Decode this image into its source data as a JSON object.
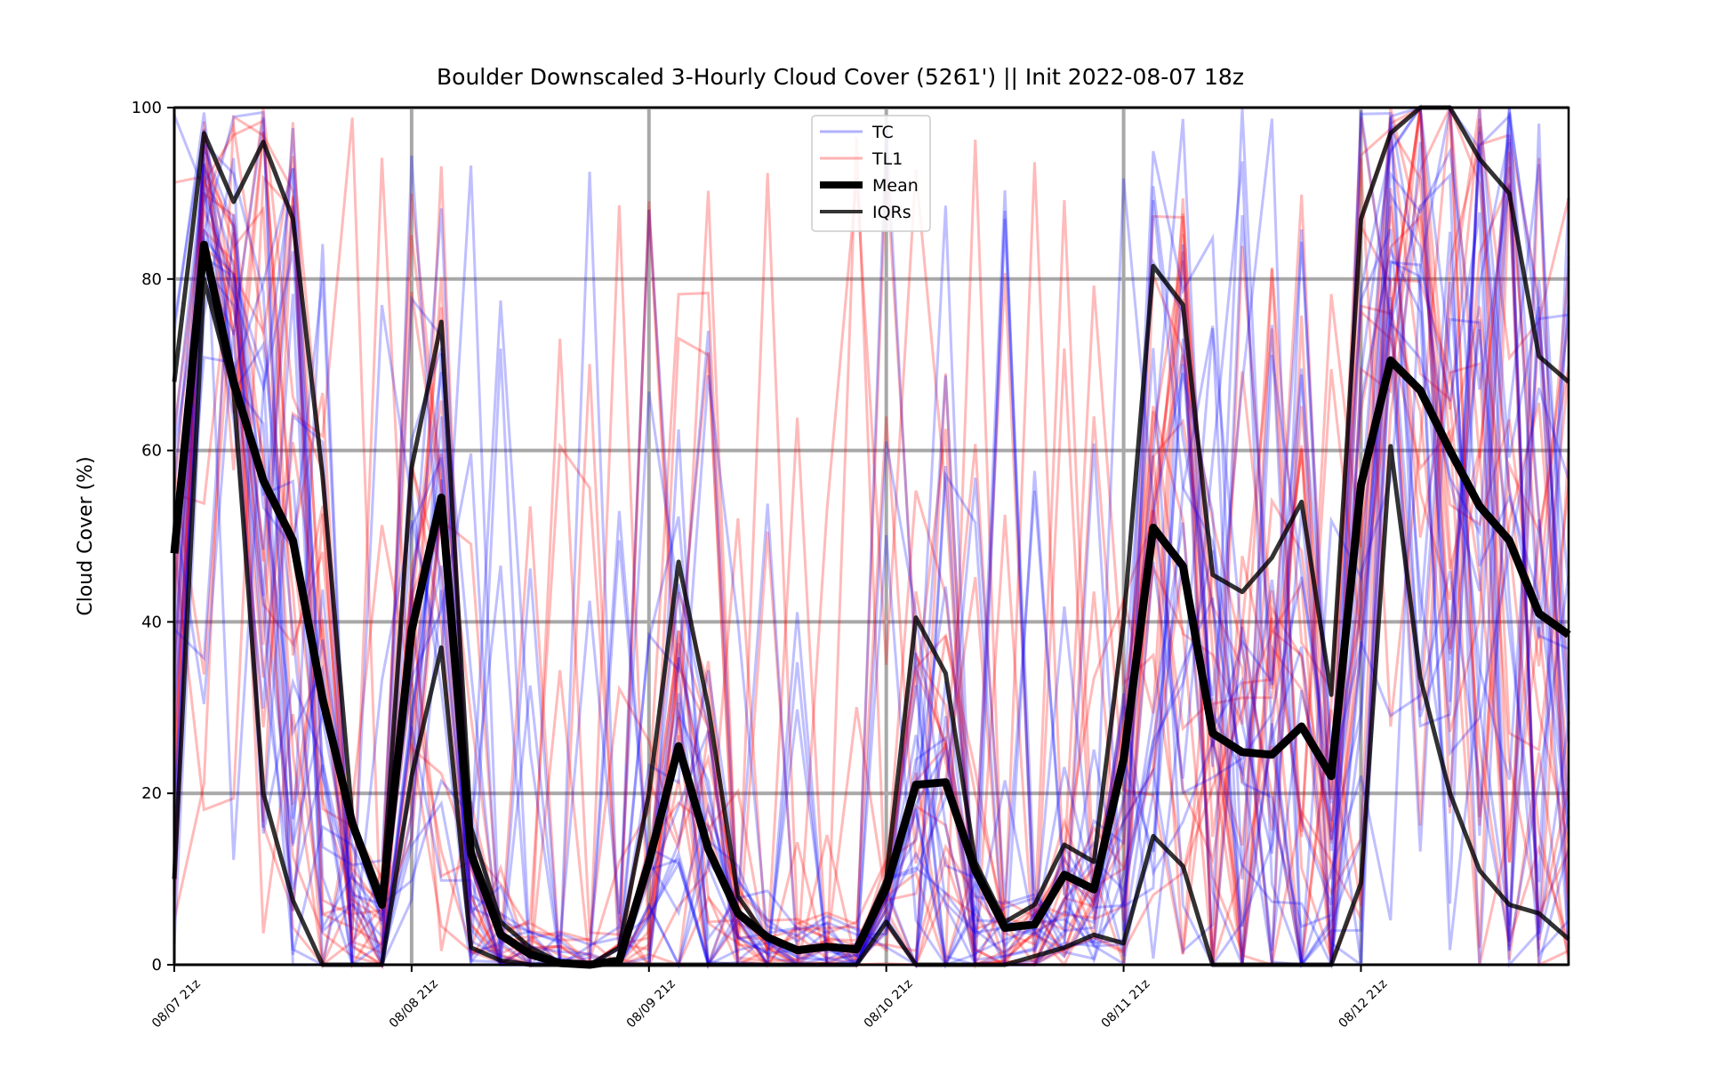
{
  "chart_data": {
    "type": "line",
    "title": "Boulder Downscaled 3-Hourly Cloud Cover (5261') || Init 2022-08-07 18z",
    "ylabel": "Cloud Cover (%)",
    "xlabel": "",
    "ylim": [
      0,
      100
    ],
    "yticks": [
      0,
      20,
      40,
      60,
      80,
      100
    ],
    "x_tick_labels": [
      "08/07 21z",
      "08/08 21z",
      "08/09 21z",
      "08/10 21z",
      "08/11 21z",
      "08/12 21z"
    ],
    "x_hours_from_first_tick": {
      "start": 0,
      "step": 3,
      "ticks": [
        0,
        24,
        48,
        72,
        96,
        120
      ],
      "end": 141
    },
    "grid": true,
    "legend": {
      "placement": "upper center",
      "entries": [
        {
          "label": "TC",
          "color": "#0000ff",
          "style": "thin-alpha"
        },
        {
          "label": "TL1",
          "color": "#ff0000",
          "style": "thin-alpha"
        },
        {
          "label": "Mean",
          "color": "#000000",
          "style": "thick"
        },
        {
          "label": "IQRs",
          "color": "#000000",
          "style": "medium-alpha"
        }
      ]
    },
    "series": [
      {
        "name": "Mean",
        "color": "#000000",
        "values": [
          48,
          84,
          68,
          56.5,
          49.5,
          31,
          16.5,
          7,
          39,
          54.5,
          13,
          3.5,
          1.2,
          0.2,
          0,
          0.5,
          12,
          25.5,
          13.5,
          6,
          3.2,
          1.7,
          2.1,
          1.8,
          9,
          21,
          21.3,
          11,
          4.3,
          4.7,
          10.5,
          8.8,
          24,
          51,
          46.5,
          27,
          24.8,
          24.5,
          27.8,
          22,
          56,
          70.5,
          67,
          60,
          53.5,
          49.5,
          41,
          38.5
        ]
      },
      {
        "name": "IQR upper",
        "color": "#000000",
        "values": [
          68,
          97,
          89,
          96,
          87,
          57,
          17,
          8,
          58,
          75,
          16,
          5,
          2,
          0.3,
          0,
          2,
          20,
          47,
          30,
          8,
          3,
          1.5,
          2,
          2,
          10,
          40.5,
          34,
          12,
          5,
          7,
          14,
          12,
          40,
          81.5,
          77,
          45.5,
          43.5,
          47.5,
          54,
          31.5,
          87,
          97,
          100,
          100,
          94,
          90,
          71,
          68
        ]
      },
      {
        "name": "IQR lower",
        "color": "#000000",
        "values": [
          10,
          80,
          67,
          20,
          7.5,
          0,
          0,
          0,
          22,
          37,
          2,
          0.5,
          0,
          0,
          0,
          0,
          0,
          0,
          0,
          0,
          0,
          0,
          0,
          0,
          5,
          0,
          0,
          0,
          0,
          1,
          2,
          3.5,
          2.5,
          15,
          11.5,
          0,
          0,
          0,
          0,
          0,
          9.5,
          60.5,
          33.5,
          20,
          11,
          7,
          6,
          3
        ]
      }
    ],
    "ensemble": {
      "TC_members": 20,
      "TL1_members": 20,
      "note_values_approximate": true
    }
  }
}
